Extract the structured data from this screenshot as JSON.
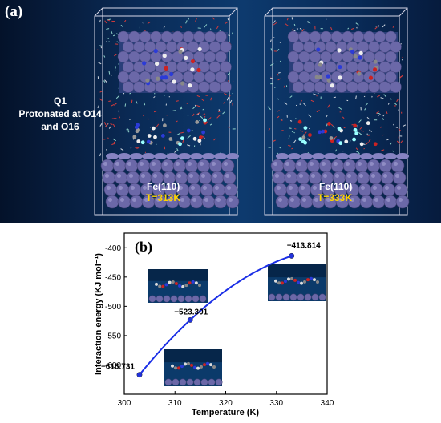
{
  "panel_a": {
    "label": "(a)",
    "annotation": [
      "Q1",
      "Protonated at O14",
      "and O16"
    ],
    "sims": [
      {
        "surface": "Fe(110)",
        "temperature": "T=313K"
      },
      {
        "surface": "Fe(110)",
        "temperature": "T=333K"
      }
    ],
    "colors": {
      "slab": "#6b68a8",
      "box": "#d8d8e8",
      "temp_text": "#ffd400"
    }
  },
  "panel_b": {
    "label": "(b)",
    "chart_data": {
      "type": "line",
      "xlabel": "Temperature (K)",
      "ylabel": "Interaction energy (KJ mol⁻¹)",
      "xlim": [
        300,
        340
      ],
      "ylim": [
        -650,
        -375
      ],
      "x_ticks": [
        300,
        310,
        320,
        330,
        340
      ],
      "y_ticks": [
        -400,
        -450,
        -500,
        -550,
        -600
      ],
      "x_tick_labels": [
        "300",
        "310",
        "320",
        "330",
        "340"
      ],
      "y_tick_labels": [
        "-400",
        "-450",
        "-500",
        "-550",
        "-600"
      ],
      "points": [
        {
          "x": 303,
          "y": -616.731,
          "label": "−616.731"
        },
        {
          "x": 313,
          "y": -523.301,
          "label": "−523.301"
        },
        {
          "x": 333,
          "y": -413.814,
          "label": "−413.814"
        }
      ],
      "line_color": "#1a2ee6",
      "marker_color": "#2233dd"
    }
  }
}
